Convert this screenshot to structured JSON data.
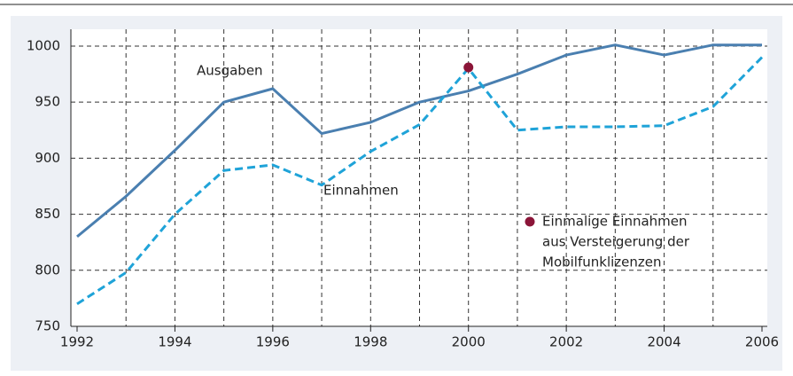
{
  "chart_data": {
    "type": "line",
    "x": [
      1992,
      1993,
      1994,
      1995,
      1996,
      1997,
      1998,
      1999,
      2000,
      2001,
      2002,
      2003,
      2004,
      2005,
      2006
    ],
    "series": [
      {
        "name": "Ausgaben",
        "color": "#4a7fb0",
        "dashed": false,
        "values": [
          830,
          866,
          907,
          950,
          962,
          922,
          932,
          950,
          960,
          975,
          992,
          1001,
          992,
          1001,
          1001
        ]
      },
      {
        "name": "Einnahmen",
        "color": "#1fa3d8",
        "dashed": true,
        "values": [
          770,
          798,
          850,
          889,
          894,
          876,
          906,
          930,
          980,
          925,
          928,
          928,
          929,
          946,
          990
        ]
      }
    ],
    "marker": {
      "x": 2000,
      "y": 981,
      "color": "#8b1538"
    },
    "annotation": [
      "Einmalige Einnahmen",
      "aus Versteigerung der",
      "Mobilfunklizenzen"
    ],
    "xlim": [
      1992,
      2006
    ],
    "xticks": [
      1992,
      1994,
      1996,
      1998,
      2000,
      2002,
      2004,
      2006
    ],
    "ylim": [
      750,
      1015
    ],
    "yticks": [
      750,
      800,
      850,
      900,
      950,
      1000
    ],
    "grid": true
  }
}
